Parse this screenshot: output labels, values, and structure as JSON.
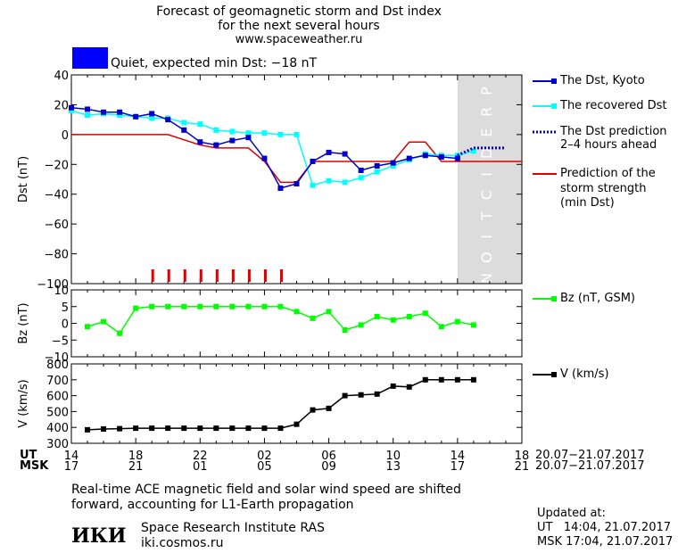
{
  "header": {
    "title_line1": "Forecast of geomagnetic storm and Dst index",
    "title_line2": "for the next several hours",
    "website": "www.spaceweather.ru"
  },
  "status": {
    "color": "#0000ff",
    "text": "Quiet, expected min Dst: −18 nT"
  },
  "legend": {
    "dst_kyoto": "The Dst, Kyoto",
    "dst_recovered": "The recovered Dst",
    "dst_prediction_line1": "The Dst prediction",
    "dst_prediction_line2": "2–4 hours ahead",
    "storm_line1": "Prediction of the",
    "storm_line2": "storm strength",
    "storm_line3": "(min Dst)",
    "bz": "Bz (nT, GSM)",
    "v": "V (km/s)"
  },
  "time_axis": {
    "ut_label": "UT",
    "msk_label": "MSK",
    "ut_ticks": [
      "14",
      "18",
      "22",
      "02",
      "06",
      "10",
      "14",
      "18"
    ],
    "msk_ticks": [
      "17",
      "21",
      "01",
      "05",
      "09",
      "13",
      "17",
      "21"
    ],
    "ut_date_range": "20.07−21.07.2017",
    "msk_date_range": "20.07−21.07.2017"
  },
  "footer": {
    "note_line1": "Real-time ACE magnetic field and solar wind speed are shifted",
    "note_line2": "forward, accounting for L1-Earth propagation",
    "institute": "Space Research Institute RAS",
    "institute_url": "iki.cosmos.ru",
    "logo_text": "ИКИ",
    "updated_label": "Updated at:",
    "updated_ut": "UT   14:04, 21.07.2017",
    "updated_msk": "MSK 17:04, 21.07.2017"
  },
  "chart_data": [
    {
      "type": "line",
      "panel": "dst",
      "ylabel": "Dst (nT)",
      "ylim": [
        -100,
        40
      ],
      "yticks": [
        40,
        20,
        0,
        -20,
        -40,
        -60,
        -80,
        -100
      ],
      "xlim_hours": [
        0,
        28
      ],
      "prediction_label": "PREDICTION",
      "prediction_region_hours": [
        24,
        28
      ],
      "series": [
        {
          "name": "The Dst, Kyoto",
          "color": "#0000cc",
          "marker": "square",
          "x": [
            0,
            1,
            2,
            3,
            4,
            5,
            6,
            7,
            8,
            9,
            10,
            11,
            12,
            13,
            14,
            15,
            16,
            17,
            18,
            19,
            20,
            21,
            22,
            23,
            24
          ],
          "y": [
            18,
            17,
            15,
            15,
            12,
            14,
            10,
            3,
            -5,
            -7,
            -4,
            -2,
            -16,
            -36,
            -33,
            -18,
            -12,
            -13,
            -24,
            -21,
            -19,
            -16,
            -14,
            -15,
            -16
          ]
        },
        {
          "name": "The recovered Dst",
          "color": "#00ffff",
          "marker": "square",
          "x": [
            0,
            1,
            2,
            3,
            4,
            5,
            6,
            7,
            8,
            9,
            10,
            11,
            12,
            13,
            14,
            15,
            16,
            17,
            18,
            19,
            20,
            21,
            22,
            23,
            24,
            25
          ],
          "y": [
            16,
            13,
            14,
            13,
            12,
            11,
            11,
            8,
            7,
            3,
            2,
            1,
            1,
            0,
            0,
            -34,
            -31,
            -32,
            -29,
            -25,
            -21,
            -17,
            -13,
            -14,
            -14,
            -11
          ]
        },
        {
          "name": "The Dst prediction 2–4 hours ahead",
          "color": "#0000cc",
          "dash": true,
          "x": [
            24,
            25,
            26,
            27
          ],
          "y": [
            -14,
            -9,
            -9,
            -9
          ]
        },
        {
          "name": "Prediction of the storm strength (min Dst)",
          "color": "#dd0000",
          "x": [
            0,
            6,
            8,
            9,
            11,
            12,
            13,
            14,
            15,
            16,
            20,
            21,
            22,
            23,
            24,
            28
          ],
          "y": [
            0,
            0,
            -7,
            -9,
            -9,
            -18,
            -32,
            -32,
            -18,
            -18,
            -18,
            -5,
            -5,
            -18,
            -18,
            -18
          ]
        }
      ],
      "storm_marker_hours": [
        5,
        6,
        7,
        8,
        9,
        10,
        11,
        12,
        13
      ]
    },
    {
      "type": "line",
      "panel": "bz",
      "ylabel": "Bz (nT)",
      "ylim": [
        -10,
        10
      ],
      "yticks": [
        10,
        5,
        0,
        -5,
        -10
      ],
      "series": [
        {
          "name": "Bz (nT, GSM)",
          "color": "#00ff00",
          "x": [
            1,
            2,
            3,
            4,
            5,
            6,
            7,
            8,
            9,
            10,
            11,
            12,
            13,
            14,
            15,
            16,
            17,
            18,
            19,
            20,
            21,
            22,
            23,
            24,
            25
          ],
          "y": [
            -1,
            0.5,
            -3,
            4.5,
            5,
            5,
            5,
            5,
            5,
            5,
            5,
            5,
            5,
            3.5,
            1.5,
            3.5,
            -2,
            -0.5,
            2,
            1,
            2,
            3,
            -1,
            0.5,
            -0.5
          ]
        }
      ]
    },
    {
      "type": "line",
      "panel": "v",
      "ylabel": "V (km/s)",
      "ylim": [
        300,
        800
      ],
      "yticks": [
        800,
        700,
        600,
        500,
        400,
        300
      ],
      "series": [
        {
          "name": "V (km/s)",
          "color": "#000000",
          "x": [
            1,
            2,
            3,
            4,
            5,
            6,
            7,
            8,
            9,
            10,
            11,
            12,
            13,
            14,
            15,
            16,
            17,
            18,
            19,
            20,
            21,
            22,
            23,
            24,
            25
          ],
          "y": [
            385,
            390,
            392,
            395,
            395,
            395,
            395,
            395,
            395,
            395,
            395,
            395,
            395,
            420,
            510,
            520,
            600,
            605,
            610,
            660,
            655,
            700,
            700,
            700,
            700
          ]
        }
      ]
    }
  ]
}
